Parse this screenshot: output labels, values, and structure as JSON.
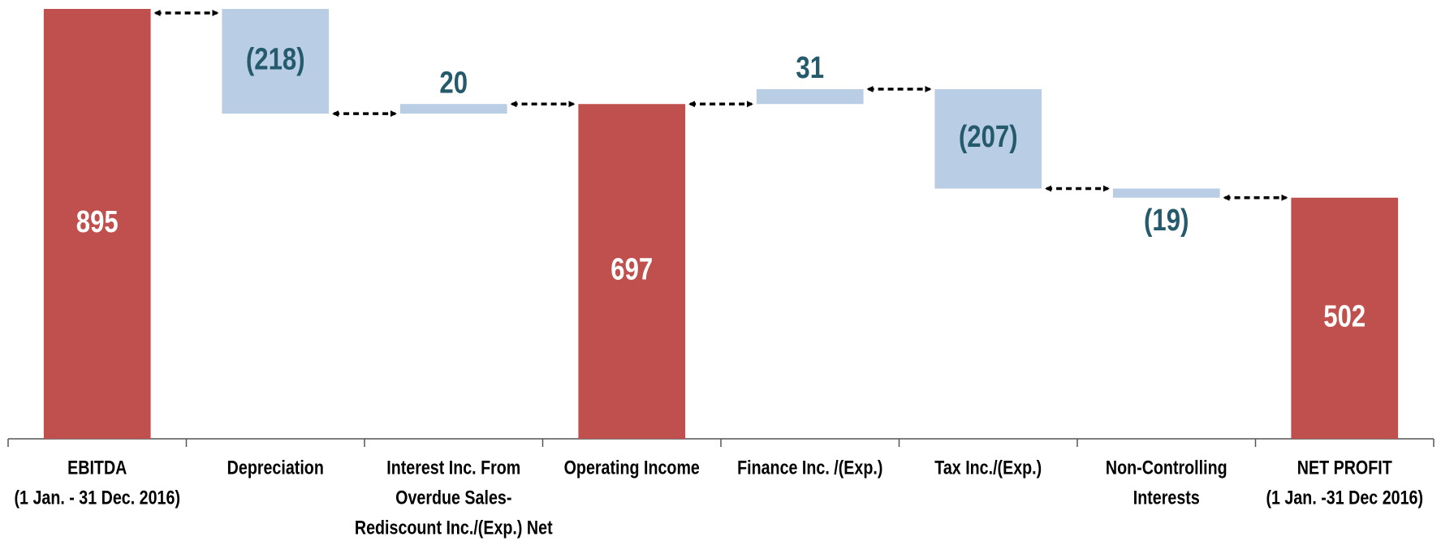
{
  "chart_data": {
    "type": "waterfall",
    "categories": [
      [
        "EBITDA",
        "(1 Jan. - 31 Dec. 2016)"
      ],
      [
        "Depreciation"
      ],
      [
        "Interest Inc. From",
        "Overdue Sales-",
        "Rediscount Inc./(Exp.) Net"
      ],
      [
        "Operating Income"
      ],
      [
        "Finance Inc. /(Exp.)"
      ],
      [
        "Tax Inc./(Exp.)"
      ],
      [
        "Non-Controlling",
        "Interests"
      ],
      [
        "NET PROFIT",
        "(1 Jan. -31 Dec 2016)"
      ]
    ],
    "values": [
      895,
      -218,
      20,
      697,
      31,
      -207,
      -19,
      502
    ],
    "value_labels": [
      "895",
      "(218)",
      "20",
      "697",
      "31",
      "(207)",
      "(19)",
      "502"
    ],
    "is_total": [
      true,
      false,
      false,
      true,
      false,
      false,
      false,
      true
    ],
    "colors": [
      "#c0504d",
      "#b9cde5",
      "#b9cde5",
      "#c0504d",
      "#b9cde5",
      "#b9cde5",
      "#b9cde5",
      "#c0504d"
    ],
    "total_label_color": "#ffffff",
    "delta_label_color": "#245a6b",
    "ylim": [
      0,
      895
    ]
  }
}
